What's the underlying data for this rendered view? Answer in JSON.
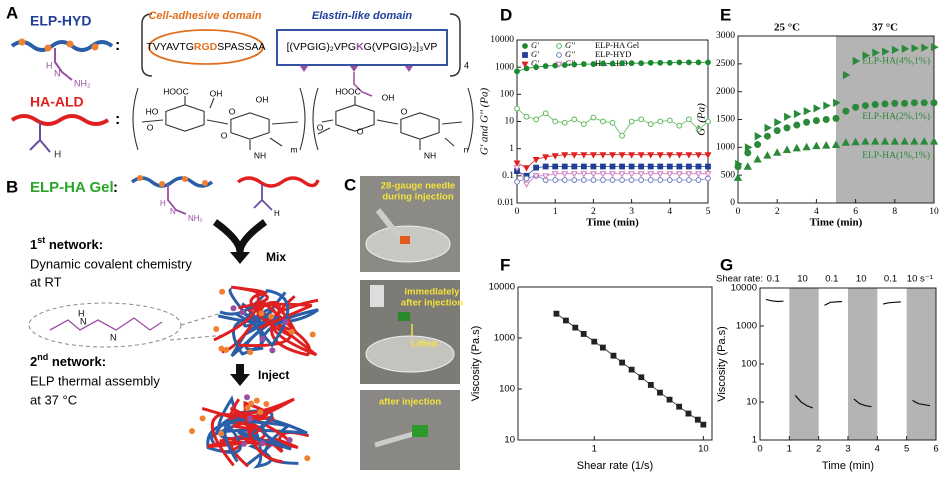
{
  "panels": {
    "A": {
      "label": "A",
      "elp_label": "ELP-HYD",
      "colon1": ":",
      "cell_domain": "Cell-adhesive domain",
      "elastin_domain": "Elastin-like domain",
      "peptide_parts": [
        "TVYAVTG",
        "RGD",
        "SPASSAA"
      ],
      "elastin_parts": [
        "[(VPGIG)₂VPG",
        "K",
        "G(VPGIG)₂]₃VP"
      ],
      "repeat": "4",
      "hyd_h": "H",
      "hyd_n": "N",
      "hyd_nh2": "NH₂",
      "ha_label": "HA-ALD",
      "colon2": ":",
      "ald_h": "H",
      "chem_labels": [
        "HOOC",
        "OH",
        "O",
        "O",
        "HO",
        "OH",
        "O",
        "NH",
        "m",
        "HOOC",
        "OH",
        "O",
        "O",
        "O",
        "NH",
        "n"
      ]
    },
    "B": {
      "label": "B",
      "gel_label": "ELP-HA Gel",
      "colon": ":",
      "hyd_h": "H",
      "hyd_n": "N",
      "hyd_nh2": "NH₂",
      "ald_h": "H",
      "net1_parts": [
        "1",
        "st",
        " network:"
      ],
      "net1_line1": "Dynamic covalent chemistry",
      "net1_line2": "at RT",
      "mix": "Mix",
      "imine_h": "H",
      "imine_n1": "N",
      "imine_n2": "N",
      "net2_parts": [
        "2",
        "nd",
        " network:"
      ],
      "net2_line1": "ELP thermal assembly",
      "net2_line2": "at 37 °C",
      "inject": "Inject"
    },
    "C": {
      "label": "C",
      "photo1_line1": "28-gauge needle",
      "photo1_line2": "during injection",
      "photo2_line1": "immediately",
      "photo2_line2": "after injection",
      "photo2_note": "Lifted",
      "photo3": "after injection"
    },
    "D": {
      "label": "D"
    },
    "E": {
      "label": "E"
    },
    "F": {
      "label": "F"
    },
    "G": {
      "label": "G"
    }
  },
  "chart_data": [
    {
      "type": "line",
      "ylog": true,
      "xlabel": "Time (min)",
      "ylabel": "G' and G'' (Pa)",
      "xlim": [
        0,
        5
      ],
      "xticks": [
        0,
        1,
        2,
        3,
        4,
        5
      ],
      "ylim": [
        0.01,
        10000
      ],
      "yticks": [
        0.01,
        0.1,
        1,
        10,
        100,
        1000,
        10000
      ],
      "legend": "top-left",
      "x": [
        0,
        0.25,
        0.5,
        0.75,
        1,
        1.25,
        1.5,
        1.75,
        2,
        2.25,
        2.5,
        2.75,
        3,
        3.25,
        3.5,
        3.75,
        4,
        4.25,
        4.5,
        4.75,
        5
      ],
      "series": [
        {
          "name": "G'",
          "group": "ELP-HA Gel",
          "color": "#1a8a2e",
          "marker": "circle",
          "filled": true,
          "values": [
            700,
            900,
            1000,
            1100,
            1150,
            1200,
            1250,
            1300,
            1300,
            1350,
            1350,
            1400,
            1400,
            1400,
            1450,
            1450,
            1450,
            1500,
            1500,
            1500,
            1500
          ]
        },
        {
          "name": "G''",
          "group": "ELP-HA Gel",
          "color": "#5cb85c",
          "marker": "circle",
          "filled": false,
          "values": [
            30,
            15,
            12,
            20,
            10,
            9,
            12,
            8,
            14,
            10,
            9,
            3,
            10,
            12,
            8,
            10,
            11,
            7,
            12,
            5,
            10
          ]
        },
        {
          "name": "G'",
          "group": "ELP-HYD",
          "color": "#1f3f99",
          "marker": "square",
          "filled": true,
          "values": [
            0.15,
            0.1,
            0.2,
            0.22,
            0.22,
            0.22,
            0.22,
            0.22,
            0.22,
            0.22,
            0.22,
            0.22,
            0.22,
            0.22,
            0.22,
            0.22,
            0.22,
            0.22,
            0.22,
            0.22,
            0.22
          ]
        },
        {
          "name": "G''",
          "group": "ELP-HYD",
          "color": "#6f7fbf",
          "marker": "circle",
          "filled": false,
          "values": [
            0.06,
            0.08,
            0.1,
            0.07,
            0.07,
            0.07,
            0.07,
            0.07,
            0.07,
            0.07,
            0.07,
            0.07,
            0.07,
            0.07,
            0.07,
            0.07,
            0.07,
            0.07,
            0.07,
            0.07,
            0.08
          ]
        },
        {
          "name": "G'",
          "group": "HA-ALD",
          "color": "#e02020",
          "marker": "triangle-down",
          "filled": true,
          "values": [
            0.3,
            0.2,
            0.4,
            0.5,
            0.55,
            0.6,
            0.6,
            0.6,
            0.6,
            0.6,
            0.6,
            0.6,
            0.6,
            0.6,
            0.6,
            0.6,
            0.6,
            0.6,
            0.6,
            0.6,
            0.6
          ]
        },
        {
          "name": "G''",
          "group": "HA-ALD",
          "color": "#d07cc0",
          "marker": "triangle-down",
          "filled": false,
          "values": [
            0.2,
            0.05,
            0.1,
            0.1,
            0.12,
            0.12,
            0.12,
            0.12,
            0.12,
            0.12,
            0.12,
            0.12,
            0.12,
            0.12,
            0.12,
            0.12,
            0.12,
            0.12,
            0.12,
            0.12,
            0.12
          ]
        }
      ]
    },
    {
      "type": "scatter",
      "xlabel": "Time (min)",
      "ylabel": "G' (Pa)",
      "xlim": [
        0,
        10
      ],
      "xticks": [
        0,
        2,
        4,
        6,
        8,
        10
      ],
      "ylim": [
        0,
        3000
      ],
      "yticks": [
        0,
        500,
        1000,
        1500,
        2000,
        2500,
        3000
      ],
      "shade": [
        [
          5,
          10
        ]
      ],
      "annotations": [
        "25 °C",
        "37 °C"
      ],
      "x": [
        0,
        0.5,
        1,
        1.5,
        2,
        2.5,
        3,
        3.5,
        4,
        4.5,
        5,
        5.5,
        6,
        6.5,
        7,
        7.5,
        8,
        8.5,
        9,
        9.5,
        10
      ],
      "series": [
        {
          "name": "ELP-HA(4%,1%)",
          "color": "#2a8a3a",
          "marker": "triangle-right",
          "filled": true,
          "values": [
            700,
            1000,
            1200,
            1350,
            1450,
            1550,
            1600,
            1650,
            1700,
            1750,
            1800,
            2300,
            2550,
            2650,
            2700,
            2720,
            2750,
            2770,
            2780,
            2790,
            2800
          ]
        },
        {
          "name": "ELP-HA(2%,1%)",
          "color": "#2a8a3a",
          "marker": "circle",
          "filled": true,
          "values": [
            650,
            900,
            1050,
            1200,
            1300,
            1350,
            1400,
            1450,
            1480,
            1500,
            1520,
            1650,
            1720,
            1750,
            1770,
            1780,
            1790,
            1790,
            1800,
            1800,
            1800
          ]
        },
        {
          "name": "ELP-HA(1%,1%)",
          "color": "#2a8a3a",
          "marker": "triangle",
          "filled": true,
          "values": [
            450,
            650,
            780,
            850,
            900,
            950,
            980,
            1000,
            1020,
            1030,
            1040,
            1080,
            1090,
            1100,
            1100,
            1100,
            1100,
            1100,
            1100,
            1100,
            1100
          ]
        }
      ]
    },
    {
      "type": "line",
      "xlog": true,
      "ylog": true,
      "xlabel": "Shear rate (1/s)",
      "ylabel": "Viscosity (Pa.s)",
      "xlim": [
        0.2,
        12
      ],
      "xticks": [
        1,
        10
      ],
      "ylim": [
        10,
        10000
      ],
      "yticks": [
        10,
        100,
        1000,
        10000
      ],
      "x": [
        0.45,
        0.55,
        0.67,
        0.8,
        1,
        1.2,
        1.5,
        1.8,
        2.2,
        2.7,
        3.3,
        4,
        4.9,
        6,
        7.3,
        8.9,
        10
      ],
      "series": [
        {
          "name": "Viscosity",
          "color": "#222222",
          "marker": "square",
          "filled": true,
          "values": [
            3000,
            2200,
            1600,
            1200,
            850,
            650,
            450,
            330,
            240,
            170,
            120,
            85,
            62,
            45,
            33,
            25,
            20
          ]
        }
      ]
    },
    {
      "type": "line",
      "ylog": true,
      "xlabel": "Time (min)",
      "ylabel": "Viscosity (Pa.s)",
      "xlim": [
        0,
        6
      ],
      "xticks": [
        0,
        1,
        2,
        3,
        4,
        5,
        6
      ],
      "ylim": [
        1,
        10000
      ],
      "yticks": [
        1,
        10,
        100,
        1000,
        10000
      ],
      "shade": [
        [
          1,
          2
        ],
        [
          3,
          4
        ],
        [
          5,
          6
        ]
      ],
      "top_label": "Shear rate:",
      "shear_rates": [
        "0.1",
        "10",
        "0.1",
        "10",
        "0.1",
        "10 s⁻¹"
      ],
      "x": [
        0.2,
        0.4,
        0.6,
        0.8,
        1,
        1.2,
        1.4,
        1.6,
        1.8,
        2,
        2.2,
        2.4,
        2.6,
        2.8,
        3,
        3.2,
        3.4,
        3.6,
        3.8,
        4,
        4.2,
        4.4,
        4.6,
        4.8,
        5,
        5.2,
        5.4,
        5.6,
        5.8
      ],
      "series": [
        {
          "name": "Viscosity",
          "color": "#111111",
          "values": [
            5000,
            4600,
            4400,
            4500,
            null,
            15,
            10,
            8,
            7,
            null,
            3500,
            4200,
            4300,
            4400,
            null,
            12,
            9,
            8,
            7.5,
            null,
            3800,
            4100,
            4200,
            4300,
            null,
            11,
            9,
            8.5,
            8
          ]
        }
      ]
    }
  ]
}
